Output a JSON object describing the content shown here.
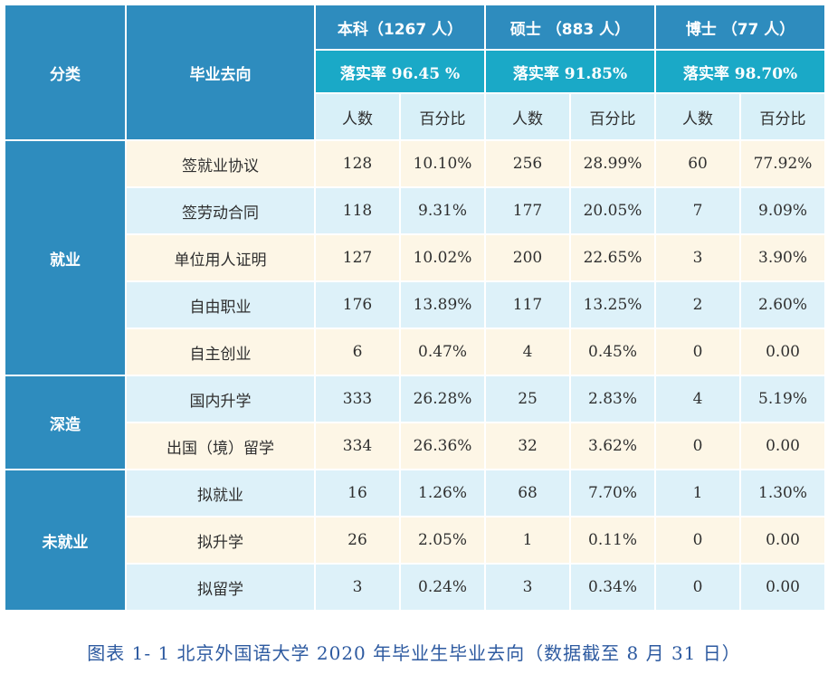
{
  "header": {
    "category": "分类",
    "destination": "毕业去向",
    "groups": [
      {
        "title": "本科（1267 人）",
        "rate": "落实率 96.45 %"
      },
      {
        "title": "硕士 （883 人）",
        "rate": "落实率 91.85%"
      },
      {
        "title": "博士 （77 人）",
        "rate": "落实率 98.70%"
      }
    ],
    "count_label": "人数",
    "pct_label": "百分比"
  },
  "categories": [
    {
      "name": "就业",
      "rows": [
        {
          "label": "签就业协议",
          "values": [
            "128",
            "10.10%",
            "256",
            "28.99%",
            "60",
            "77.92%"
          ]
        },
        {
          "label": "签劳动合同",
          "values": [
            "118",
            "9.31%",
            "177",
            "20.05%",
            "7",
            "9.09%"
          ]
        },
        {
          "label": "单位用人证明",
          "values": [
            "127",
            "10.02%",
            "200",
            "22.65%",
            "3",
            "3.90%"
          ]
        },
        {
          "label": "自由职业",
          "values": [
            "176",
            "13.89%",
            "117",
            "13.25%",
            "2",
            "2.60%"
          ]
        },
        {
          "label": "自主创业",
          "values": [
            "6",
            "0.47%",
            "4",
            "0.45%",
            "0",
            "0.00"
          ]
        }
      ]
    },
    {
      "name": "深造",
      "rows": [
        {
          "label": "国内升学",
          "values": [
            "333",
            "26.28%",
            "25",
            "2.83%",
            "4",
            "5.19%"
          ]
        },
        {
          "label": "出国（境）留学",
          "values": [
            "334",
            "26.36%",
            "32",
            "3.62%",
            "0",
            "0.00"
          ]
        }
      ]
    },
    {
      "name": "未就业",
      "rows": [
        {
          "label": "拟就业",
          "values": [
            "16",
            "1.26%",
            "68",
            "7.70%",
            "1",
            "1.30%"
          ]
        },
        {
          "label": "拟升学",
          "values": [
            "26",
            "2.05%",
            "1",
            "0.11%",
            "0",
            "0.00"
          ]
        },
        {
          "label": "拟留学",
          "values": [
            "3",
            "0.24%",
            "3",
            "0.34%",
            "0",
            "0.00"
          ]
        }
      ]
    }
  ],
  "caption": "图表 1- 1 北京外国语大学 2020 年毕业生毕业去向（数据截至 8 月 31 日）"
}
